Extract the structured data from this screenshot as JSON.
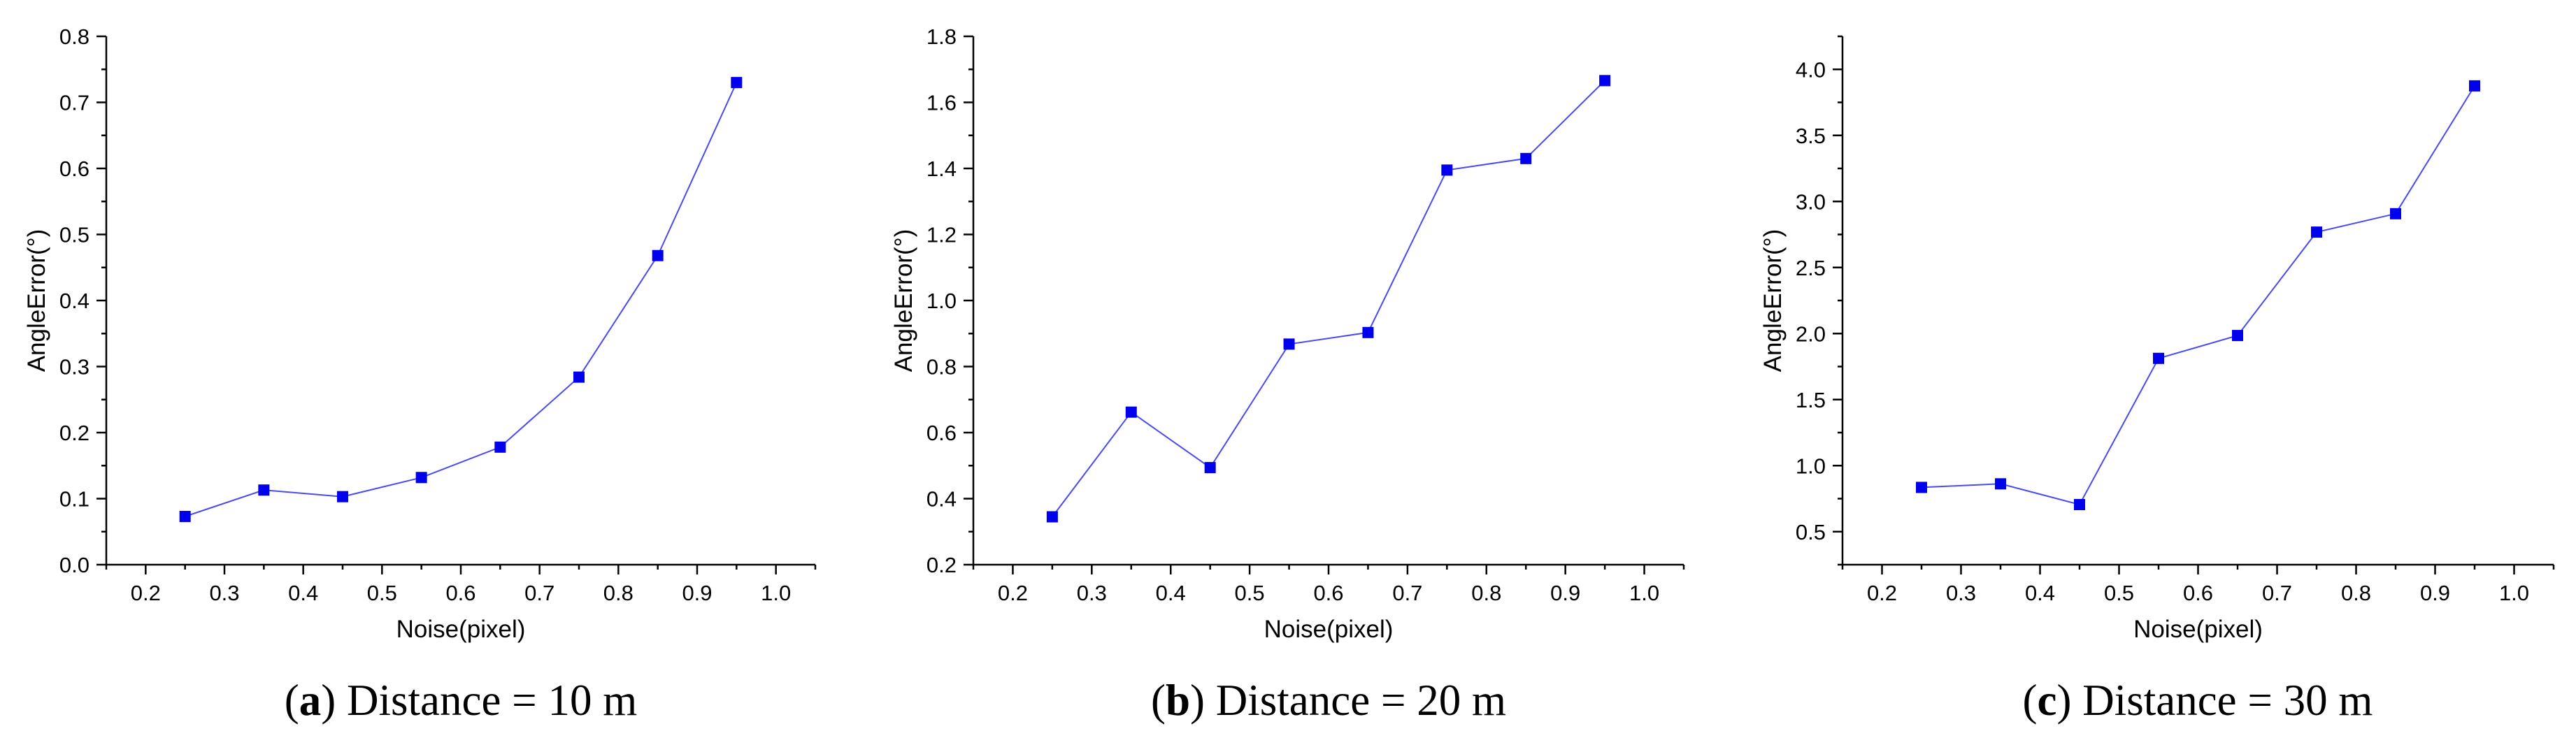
{
  "chart_data": [
    {
      "type": "line",
      "panel_letter": "a",
      "caption_rest": "Distance = 10 m",
      "xlabel": "Noise(pixel)",
      "ylabel": "AngleError(°)",
      "xlim": [
        0.15,
        1.05
      ],
      "ylim": [
        0.0,
        0.8
      ],
      "xticks": [
        "0.2",
        "0.3",
        "0.4",
        "0.5",
        "0.6",
        "0.7",
        "0.8",
        "0.9",
        "1.0"
      ],
      "yticks": [
        "0.0",
        "0.1",
        "0.2",
        "0.3",
        "0.4",
        "0.5",
        "0.6",
        "0.7",
        "0.8"
      ],
      "x": [
        0.25,
        0.35,
        0.45,
        0.55,
        0.65,
        0.75,
        0.85,
        0.95
      ],
      "y": [
        0.073,
        0.113,
        0.103,
        0.132,
        0.178,
        0.284,
        0.468,
        0.73
      ],
      "color": "#0000ee"
    },
    {
      "type": "line",
      "panel_letter": "b",
      "caption_rest": "Distance = 20 m",
      "xlabel": "Noise(pixel)",
      "ylabel": "AngleError(°)",
      "xlim": [
        0.15,
        1.05
      ],
      "ylim": [
        0.2,
        1.8
      ],
      "xticks": [
        "0.2",
        "0.3",
        "0.4",
        "0.5",
        "0.6",
        "0.7",
        "0.8",
        "0.9",
        "1.0"
      ],
      "yticks": [
        "0.2",
        "0.4",
        "0.6",
        "0.8",
        "1.0",
        "1.2",
        "1.4",
        "1.6",
        "1.8"
      ],
      "x": [
        0.25,
        0.35,
        0.45,
        0.55,
        0.65,
        0.75,
        0.85,
        0.95
      ],
      "y": [
        0.345,
        0.662,
        0.494,
        0.868,
        0.903,
        1.395,
        1.43,
        1.666
      ],
      "color": "#0000ee"
    },
    {
      "type": "line",
      "panel_letter": "c",
      "caption_rest": "Distance = 30 m",
      "xlabel": "Noise(pixel)",
      "ylabel": "AngleError(°)",
      "xlim": [
        0.15,
        1.05
      ],
      "ylim": [
        0.25,
        4.25
      ],
      "xticks": [
        "0.2",
        "0.3",
        "0.4",
        "0.5",
        "0.6",
        "0.7",
        "0.8",
        "0.9",
        "1.0"
      ],
      "yticks": [
        "0.5",
        "1.0",
        "1.5",
        "2.0",
        "2.5",
        "3.0",
        "3.5",
        "4.0"
      ],
      "x": [
        0.25,
        0.35,
        0.45,
        0.55,
        0.65,
        0.75,
        0.85,
        0.95
      ],
      "y": [
        0.835,
        0.862,
        0.705,
        1.812,
        1.985,
        2.768,
        2.907,
        3.875
      ],
      "color": "#0000ee"
    }
  ]
}
